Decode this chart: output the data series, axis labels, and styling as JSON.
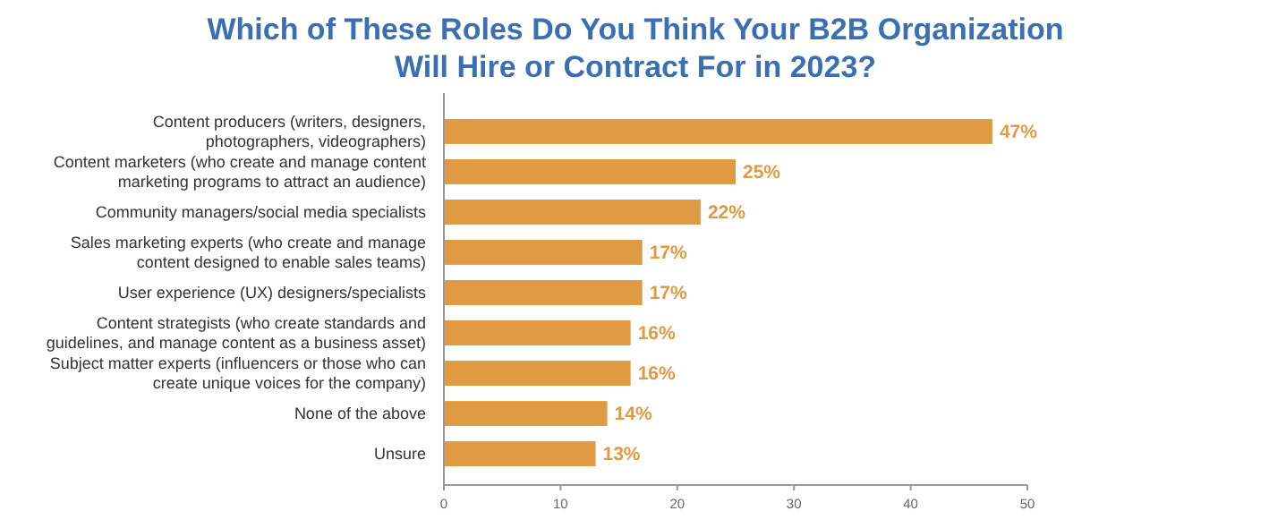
{
  "chart_data": {
    "type": "bar",
    "orientation": "horizontal",
    "title": "Which of These Roles Do You Think Your B2B Organization Will Hire or Contract For in 2023?",
    "categories": [
      "Content producers  (writers, designers, photographers, videographers)",
      "Content marketers  (who create and manage content marketing programs to attract an audience)",
      "Community managers/social media specialists",
      "Sales marketing experts (who create and manage content designed to enable sales teams)",
      "User experience (UX) designers/specialists",
      "Content strategists (who create standards and guidelines, and manage content as a business asset)",
      "Subject matter experts (influencers or those who can create unique voices for the company)",
      "None of the above",
      "Unsure"
    ],
    "values": [
      47,
      25,
      22,
      17,
      17,
      16,
      16,
      14,
      13
    ],
    "value_labels": [
      "47%",
      "25%",
      "22%",
      "17%",
      "17%",
      "16%",
      "16%",
      "14%",
      "13%"
    ],
    "color": "#e09a41",
    "xlim": [
      0,
      50
    ],
    "xticks": [
      0,
      10,
      20,
      30,
      40,
      50
    ],
    "grid": false
  }
}
